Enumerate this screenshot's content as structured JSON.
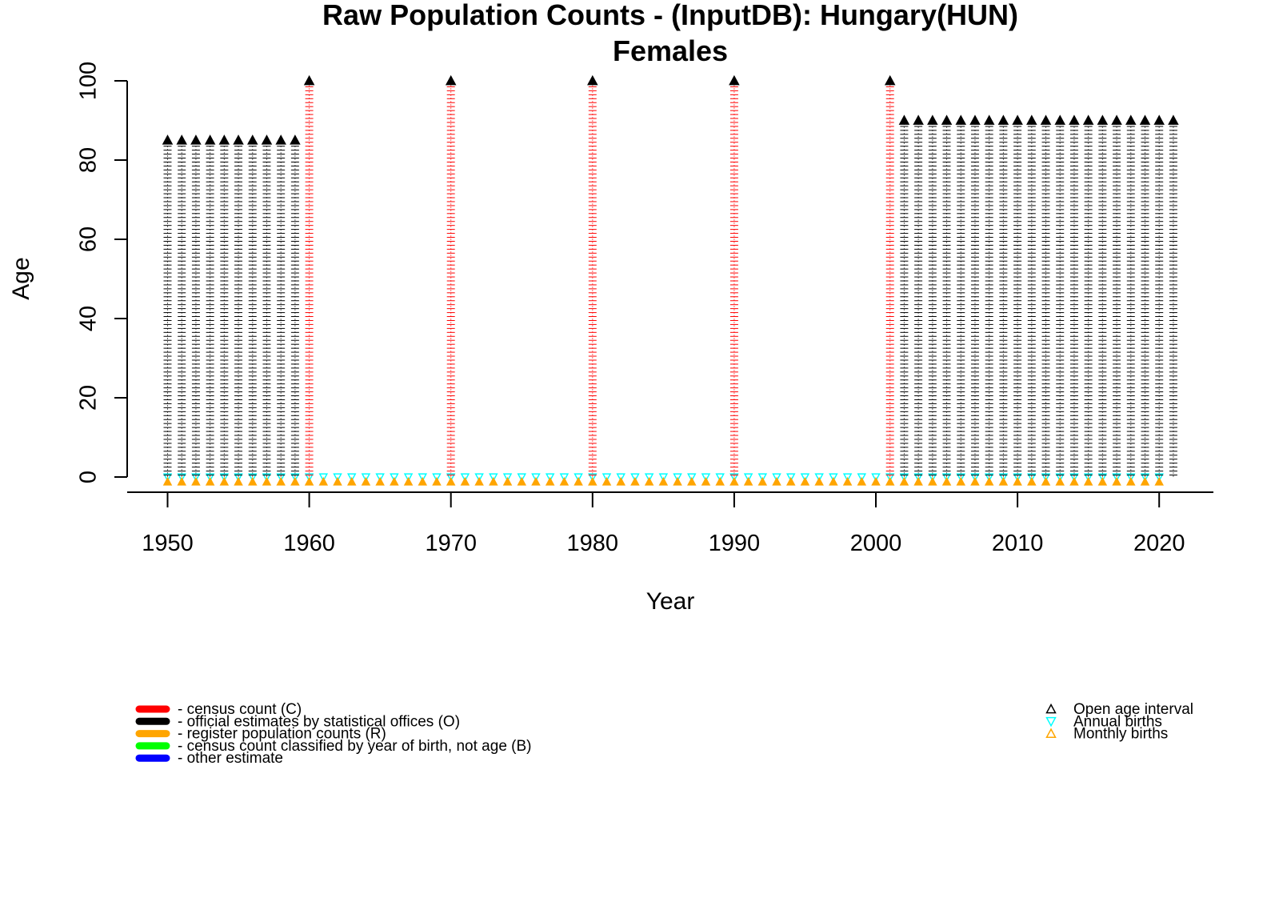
{
  "chart_data": {
    "type": "scatter",
    "title": "Raw Population Counts - (InputDB): Hungary(HUN)",
    "subtitle": "Females",
    "xlabel": "Year",
    "ylabel": "Age",
    "xlim": [
      1947,
      2024
    ],
    "ylim": [
      0,
      100
    ],
    "x_ticks": [
      1950,
      1960,
      1970,
      1980,
      1990,
      2000,
      2010,
      2020
    ],
    "y_ticks": [
      0,
      20,
      40,
      60,
      80,
      100
    ],
    "grid": false,
    "colors": {
      "census": "#ff0000",
      "official": "#000000",
      "register": "#ffa500",
      "birthcohort": "#00ff00",
      "other": "#0000ff",
      "annual_births": "#00ffff",
      "monthly_births": "#ffa500",
      "open_age": "#000000"
    },
    "series": [
      {
        "type": "O",
        "years": [
          1950,
          1951,
          1952,
          1953,
          1954,
          1955,
          1956,
          1957,
          1958,
          1959
        ],
        "open_age": 85
      },
      {
        "type": "C",
        "years": [
          1960,
          1970,
          1980,
          1990,
          2001
        ],
        "open_age": 100
      },
      {
        "type": "O",
        "years": [
          2002,
          2003,
          2004,
          2005,
          2006,
          2007,
          2008,
          2009,
          2010,
          2011,
          2012,
          2013,
          2014,
          2015,
          2016,
          2017,
          2018,
          2019,
          2020,
          2021
        ],
        "open_age": 90
      }
    ],
    "annual_births": {
      "from": 1950,
      "to": 2020
    },
    "monthly_births": {
      "from": 1950,
      "to": 2020
    },
    "legend_left": [
      {
        "key": "census",
        "label": "- census count (C)"
      },
      {
        "key": "official",
        "label": "- official estimates by statistical offices (O)"
      },
      {
        "key": "register",
        "label": "- register population counts (R)"
      },
      {
        "key": "birthcohort",
        "label": "- census count classified by year of birth, not age (B)"
      },
      {
        "key": "other",
        "label": "- other estimate"
      }
    ],
    "legend_right": [
      {
        "key": "open_age",
        "marker": "triangle-up",
        "label": "Open age interval"
      },
      {
        "key": "annual_births",
        "marker": "triangle-down",
        "label": "Annual births"
      },
      {
        "key": "monthly_births",
        "marker": "triangle-up",
        "label": "Monthly births"
      }
    ]
  }
}
